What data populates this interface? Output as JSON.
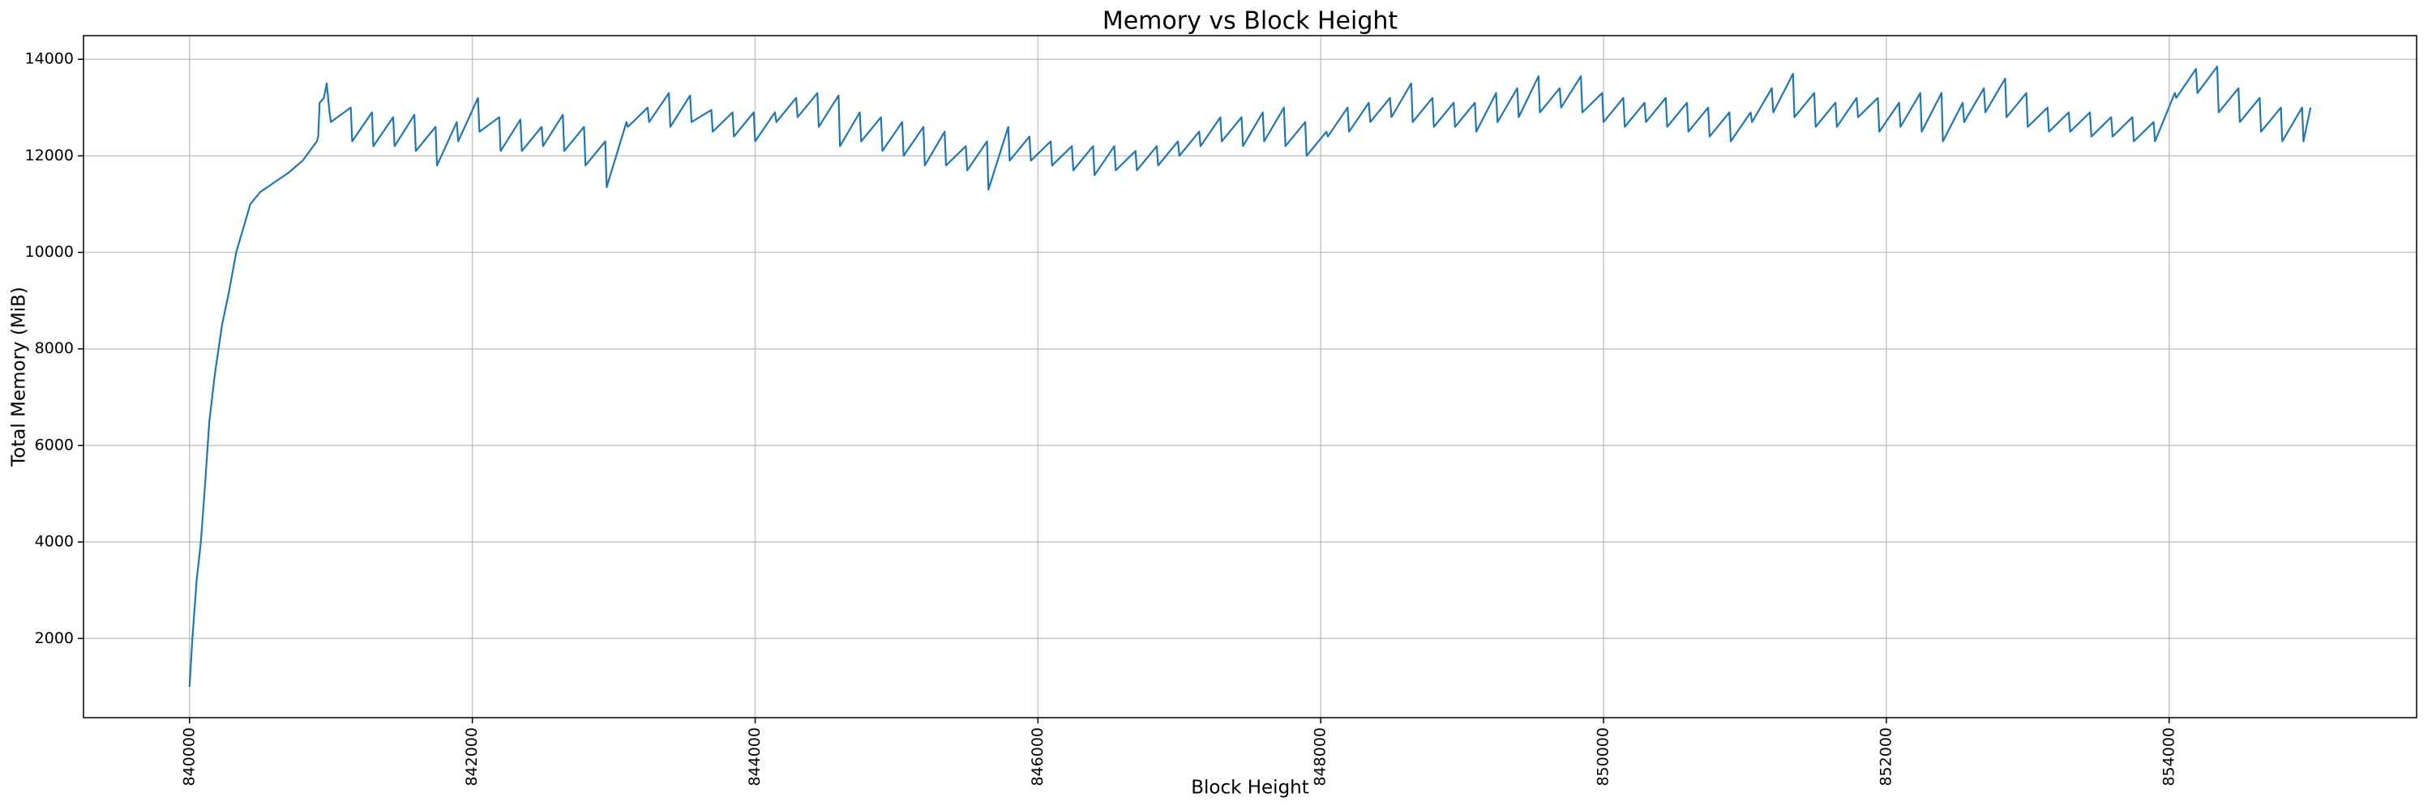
{
  "chart_data": {
    "type": "line",
    "title": "Memory vs Block Height",
    "x_label": "Block Height",
    "y_label": "Total Memory (MiB)",
    "x": [
      840000,
      840020,
      840050,
      840080,
      840110,
      840140,
      840180,
      840230,
      840280,
      840330,
      840380,
      840430,
      840500,
      840600,
      840700,
      840800,
      840850,
      840900,
      840910,
      840920,
      840950,
      840970,
      840990,
      841000,
      841140,
      841150,
      841290,
      841300,
      841440,
      841450,
      841590,
      841600,
      841740,
      841750,
      841890,
      841900,
      842040,
      842050,
      842190,
      842200,
      842340,
      842350,
      842490,
      842500,
      842640,
      842650,
      842790,
      842800,
      842940,
      842950,
      843090,
      843100,
      843240,
      843250,
      843390,
      843400,
      843540,
      843550,
      843690,
      843700,
      843840,
      843850,
      843990,
      844000,
      844140,
      844150,
      844290,
      844300,
      844440,
      844450,
      844590,
      844600,
      844740,
      844750,
      844890,
      844900,
      845040,
      845050,
      845190,
      845200,
      845340,
      845350,
      845490,
      845500,
      845640,
      845650,
      845790,
      845800,
      845940,
      845950,
      846090,
      846100,
      846240,
      846250,
      846390,
      846400,
      846540,
      846550,
      846690,
      846700,
      846840,
      846850,
      846990,
      847000,
      847140,
      847150,
      847290,
      847300,
      847440,
      847450,
      847590,
      847600,
      847740,
      847750,
      847890,
      847900,
      848040,
      848050,
      848190,
      848200,
      848340,
      848350,
      848490,
      848500,
      848640,
      848650,
      848790,
      848800,
      848940,
      848950,
      849090,
      849100,
      849240,
      849250,
      849390,
      849400,
      849540,
      849550,
      849690,
      849700,
      849840,
      849850,
      849990,
      850000,
      850140,
      850150,
      850290,
      850300,
      850440,
      850450,
      850590,
      850600,
      850740,
      850750,
      850890,
      850900,
      851040,
      851050,
      851190,
      851200,
      851340,
      851350,
      851490,
      851500,
      851640,
      851650,
      851790,
      851800,
      851940,
      851950,
      852090,
      852100,
      852240,
      852250,
      852390,
      852400,
      852540,
      852550,
      852690,
      852700,
      852840,
      852850,
      852990,
      853000,
      853140,
      853150,
      853290,
      853300,
      853440,
      853450,
      853590,
      853600,
      853740,
      853750,
      853890,
      853900,
      854040,
      854050,
      854190,
      854200,
      854340,
      854350,
      854490,
      854500,
      854640,
      854650,
      854790,
      854800,
      854940,
      854950,
      855000
    ],
    "series": [
      {
        "name": "Total Memory",
        "color": "#1f77b4",
        "values": [
          1000,
          2000,
          3200,
          4000,
          5200,
          6500,
          7500,
          8500,
          9200,
          10000,
          10500,
          11000,
          11250,
          11450,
          11650,
          11900,
          12100,
          12300,
          12400,
          13100,
          13200,
          13500,
          12900,
          12700,
          13000,
          12300,
          12900,
          12200,
          12800,
          12200,
          12850,
          12100,
          12600,
          11800,
          12700,
          12300,
          13200,
          12500,
          12800,
          12100,
          12750,
          12100,
          12600,
          12200,
          12850,
          12100,
          12600,
          11800,
          12300,
          11350,
          12700,
          12600,
          13000,
          12700,
          13300,
          12600,
          13250,
          12700,
          12950,
          12500,
          12900,
          12400,
          12900,
          12300,
          12900,
          12700,
          13200,
          12800,
          13300,
          12600,
          13250,
          12200,
          12900,
          12300,
          12800,
          12100,
          12700,
          12000,
          12600,
          11800,
          12500,
          11800,
          12200,
          11700,
          12300,
          11300,
          12600,
          11900,
          12400,
          11900,
          12300,
          11800,
          12200,
          11700,
          12200,
          11600,
          12200,
          11700,
          12100,
          11700,
          12200,
          11800,
          12300,
          12000,
          12500,
          12200,
          12800,
          12300,
          12800,
          12200,
          12900,
          12300,
          13000,
          12200,
          12700,
          12000,
          12500,
          12400,
          13000,
          12500,
          13100,
          12700,
          13200,
          12800,
          13500,
          12700,
          13200,
          12600,
          13100,
          12600,
          13100,
          12500,
          13300,
          12700,
          13400,
          12800,
          13650,
          12900,
          13400,
          13000,
          13650,
          12900,
          13300,
          12700,
          13200,
          12600,
          13100,
          12700,
          13200,
          12600,
          13100,
          12500,
          13000,
          12400,
          12900,
          12300,
          12900,
          12700,
          13400,
          12900,
          13700,
          12800,
          13300,
          12600,
          13100,
          12600,
          13200,
          12800,
          13200,
          12500,
          13100,
          12600,
          13300,
          12500,
          13300,
          12300,
          13100,
          12700,
          13400,
          12900,
          13600,
          12800,
          13300,
          12600,
          13000,
          12500,
          12900,
          12500,
          12900,
          12400,
          12800,
          12400,
          12800,
          12300,
          12700,
          12300,
          13300,
          13200,
          13800,
          13300,
          13850,
          12900,
          13400,
          12700,
          13200,
          12500,
          13000,
          12300,
          13000,
          12300,
          13000
        ]
      }
    ],
    "xlim": [
      839250,
      855750
    ],
    "ylim": [
      360,
      14490
    ],
    "xticks": [
      840000,
      842000,
      844000,
      846000,
      848000,
      850000,
      852000,
      854000
    ],
    "yticks": [
      2000,
      4000,
      6000,
      8000,
      10000,
      12000,
      14000
    ],
    "grid": true
  }
}
